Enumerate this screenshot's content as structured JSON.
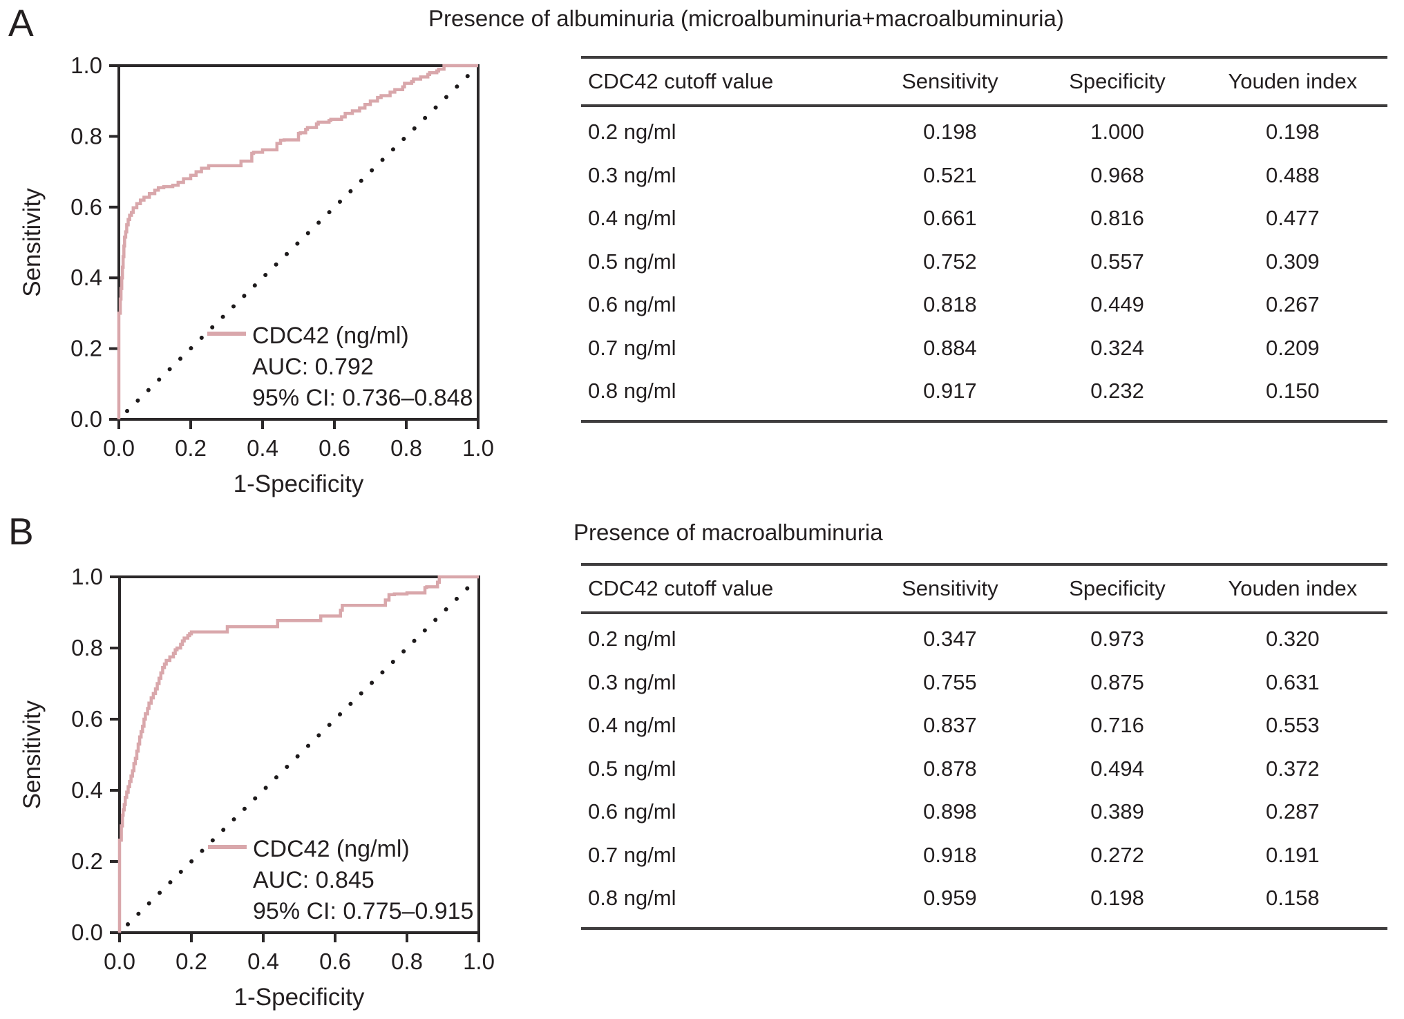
{
  "page": {
    "background": "#ffffff",
    "text_color": "#231f20",
    "curve_color": "#d9a7ab",
    "axis_color": "#2b2829",
    "rule_color": "#3f3d3e"
  },
  "panel_labels": [
    "A",
    "B"
  ],
  "chart_data": [
    {
      "panel": "A",
      "type": "line",
      "subtype": "roc-curve",
      "xlabel": "1-Specificity",
      "ylabel": "Sensitivity",
      "xlim": [
        0,
        1
      ],
      "ylim": [
        0,
        1
      ],
      "xticks": [
        "0.0",
        "0.2",
        "0.4",
        "0.6",
        "0.8",
        "1.0"
      ],
      "yticks": [
        "1.0",
        "0.8",
        "0.6",
        "0.4",
        "0.2",
        "0.0"
      ],
      "grid": false,
      "diagonal_reference": true,
      "legend_position": "lower-right-inside",
      "legend_lines": [
        "CDC42 (ng/ml)",
        "AUC: 0.792",
        "95% CI: 0.736–0.848"
      ],
      "series": [
        {
          "name": "CDC42 (ng/ml)",
          "auc": "0.792",
          "ci_95": "0.736–0.848",
          "color": "#d9a7ab",
          "points": [
            [
              0,
              0
            ],
            [
              0,
              0.25
            ],
            [
              0.004,
              0.3
            ],
            [
              0.006,
              0.34
            ],
            [
              0.008,
              0.37
            ],
            [
              0.01,
              0.4
            ],
            [
              0.012,
              0.43
            ],
            [
              0.014,
              0.46
            ],
            [
              0.016,
              0.49
            ],
            [
              0.019,
              0.515
            ],
            [
              0.022,
              0.53
            ],
            [
              0.026,
              0.55
            ],
            [
              0.03,
              0.565
            ],
            [
              0.035,
              0.577
            ],
            [
              0.04,
              0.585
            ],
            [
              0.05,
              0.598
            ],
            [
              0.06,
              0.61
            ],
            [
              0.07,
              0.62
            ],
            [
              0.085,
              0.628
            ],
            [
              0.1,
              0.638
            ],
            [
              0.11,
              0.648
            ],
            [
              0.125,
              0.655
            ],
            [
              0.15,
              0.658
            ],
            [
              0.165,
              0.662
            ],
            [
              0.18,
              0.67
            ],
            [
              0.2,
              0.68
            ],
            [
              0.215,
              0.69
            ],
            [
              0.23,
              0.7
            ],
            [
              0.25,
              0.71
            ],
            [
              0.27,
              0.717
            ],
            [
              0.34,
              0.717
            ],
            [
              0.345,
              0.73
            ],
            [
              0.37,
              0.73
            ],
            [
              0.375,
              0.752
            ],
            [
              0.4,
              0.755
            ],
            [
              0.405,
              0.762
            ],
            [
              0.44,
              0.762
            ],
            [
              0.45,
              0.78
            ],
            [
              0.46,
              0.789
            ],
            [
              0.5,
              0.79
            ],
            [
              0.505,
              0.808
            ],
            [
              0.52,
              0.81
            ],
            [
              0.525,
              0.82
            ],
            [
              0.55,
              0.825
            ],
            [
              0.555,
              0.835
            ],
            [
              0.585,
              0.84
            ],
            [
              0.59,
              0.845
            ],
            [
              0.62,
              0.848
            ],
            [
              0.63,
              0.855
            ],
            [
              0.65,
              0.865
            ],
            [
              0.67,
              0.872
            ],
            [
              0.685,
              0.88
            ],
            [
              0.7,
              0.89
            ],
            [
              0.72,
              0.9
            ],
            [
              0.73,
              0.91
            ],
            [
              0.755,
              0.915
            ],
            [
              0.768,
              0.925
            ],
            [
              0.79,
              0.932
            ],
            [
              0.795,
              0.94
            ],
            [
              0.815,
              0.95
            ],
            [
              0.82,
              0.955
            ],
            [
              0.84,
              0.962
            ],
            [
              0.86,
              0.968
            ],
            [
              0.865,
              0.975
            ],
            [
              0.885,
              0.98
            ],
            [
              0.89,
              0.985
            ],
            [
              0.905,
              0.99
            ],
            [
              0.91,
              1
            ],
            [
              1,
              1
            ]
          ]
        }
      ]
    },
    {
      "panel": "A",
      "type": "table",
      "title": "Presence of albuminuria (microalbuminuria+macroalbuminuria)",
      "headers": [
        "CDC42 cutoff value",
        "Sensitivity",
        "Specificity",
        "Youden index"
      ],
      "rows": [
        [
          "0.2 ng/ml",
          "0.198",
          "1.000",
          "0.198"
        ],
        [
          "0.3 ng/ml",
          "0.521",
          "0.968",
          "0.488"
        ],
        [
          "0.4 ng/ml",
          "0.661",
          "0.816",
          "0.477"
        ],
        [
          "0.5 ng/ml",
          "0.752",
          "0.557",
          "0.309"
        ],
        [
          "0.6 ng/ml",
          "0.818",
          "0.449",
          "0.267"
        ],
        [
          "0.7 ng/ml",
          "0.884",
          "0.324",
          "0.209"
        ],
        [
          "0.8 ng/ml",
          "0.917",
          "0.232",
          "0.150"
        ]
      ]
    },
    {
      "panel": "B",
      "type": "line",
      "subtype": "roc-curve",
      "xlabel": "1-Specificity",
      "ylabel": "Sensitivity",
      "xlim": [
        0,
        1
      ],
      "ylim": [
        0,
        1
      ],
      "xticks": [
        "0.0",
        "0.2",
        "0.4",
        "0.6",
        "0.8",
        "1.0"
      ],
      "yticks": [
        "1.0",
        "0.8",
        "0.6",
        "0.4",
        "0.2",
        "0.0"
      ],
      "grid": false,
      "diagonal_reference": true,
      "legend_position": "lower-right-inside",
      "legend_lines": [
        "CDC42 (ng/ml)",
        "AUC: 0.845",
        "95% CI: 0.775–0.915"
      ],
      "series": [
        {
          "name": "CDC42 (ng/ml)",
          "auc": "0.845",
          "ci_95": "0.775–0.915",
          "color": "#d9a7ab",
          "points": [
            [
              0,
              0
            ],
            [
              0,
              0.24
            ],
            [
              0.005,
              0.26
            ],
            [
              0.008,
              0.3
            ],
            [
              0.01,
              0.33
            ],
            [
              0.013,
              0.345
            ],
            [
              0.016,
              0.36
            ],
            [
              0.02,
              0.38
            ],
            [
              0.024,
              0.395
            ],
            [
              0.028,
              0.41
            ],
            [
              0.032,
              0.425
            ],
            [
              0.036,
              0.44
            ],
            [
              0.04,
              0.455
            ],
            [
              0.044,
              0.475
            ],
            [
              0.048,
              0.49
            ],
            [
              0.052,
              0.51
            ],
            [
              0.056,
              0.53
            ],
            [
              0.06,
              0.55
            ],
            [
              0.064,
              0.565
            ],
            [
              0.068,
              0.58
            ],
            [
              0.072,
              0.6
            ],
            [
              0.078,
              0.615
            ],
            [
              0.082,
              0.63
            ],
            [
              0.088,
              0.645
            ],
            [
              0.094,
              0.66
            ],
            [
              0.1,
              0.672
            ],
            [
              0.105,
              0.685
            ],
            [
              0.11,
              0.7
            ],
            [
              0.115,
              0.715
            ],
            [
              0.12,
              0.73
            ],
            [
              0.125,
              0.745
            ],
            [
              0.13,
              0.755
            ],
            [
              0.14,
              0.765
            ],
            [
              0.15,
              0.775
            ],
            [
              0.155,
              0.785
            ],
            [
              0.16,
              0.795
            ],
            [
              0.17,
              0.8
            ],
            [
              0.175,
              0.81
            ],
            [
              0.18,
              0.82
            ],
            [
              0.19,
              0.828
            ],
            [
              0.195,
              0.835
            ],
            [
              0.2,
              0.84
            ],
            [
              0.21,
              0.845
            ],
            [
              0.3,
              0.845
            ],
            [
              0.305,
              0.86
            ],
            [
              0.44,
              0.86
            ],
            [
              0.45,
              0.877
            ],
            [
              0.56,
              0.877
            ],
            [
              0.565,
              0.89
            ],
            [
              0.615,
              0.89
            ],
            [
              0.62,
              0.906
            ],
            [
              0.625,
              0.92
            ],
            [
              0.74,
              0.92
            ],
            [
              0.75,
              0.935
            ],
            [
              0.765,
              0.95
            ],
            [
              0.8,
              0.952
            ],
            [
              0.85,
              0.955
            ],
            [
              0.855,
              0.97
            ],
            [
              0.885,
              0.972
            ],
            [
              0.89,
              0.985
            ],
            [
              0.9,
              1
            ],
            [
              1,
              1
            ]
          ]
        }
      ]
    },
    {
      "panel": "B",
      "type": "table",
      "title": "Presence of macroalbuminuria",
      "headers": [
        "CDC42 cutoff value",
        "Sensitivity",
        "Specificity",
        "Youden index"
      ],
      "rows": [
        [
          "0.2 ng/ml",
          "0.347",
          "0.973",
          "0.320"
        ],
        [
          "0.3 ng/ml",
          "0.755",
          "0.875",
          "0.631"
        ],
        [
          "0.4 ng/ml",
          "0.837",
          "0.716",
          "0.553"
        ],
        [
          "0.5 ng/ml",
          "0.878",
          "0.494",
          "0.372"
        ],
        [
          "0.6 ng/ml",
          "0.898",
          "0.389",
          "0.287"
        ],
        [
          "0.7 ng/ml",
          "0.918",
          "0.272",
          "0.191"
        ],
        [
          "0.8 ng/ml",
          "0.959",
          "0.198",
          "0.158"
        ]
      ]
    }
  ]
}
